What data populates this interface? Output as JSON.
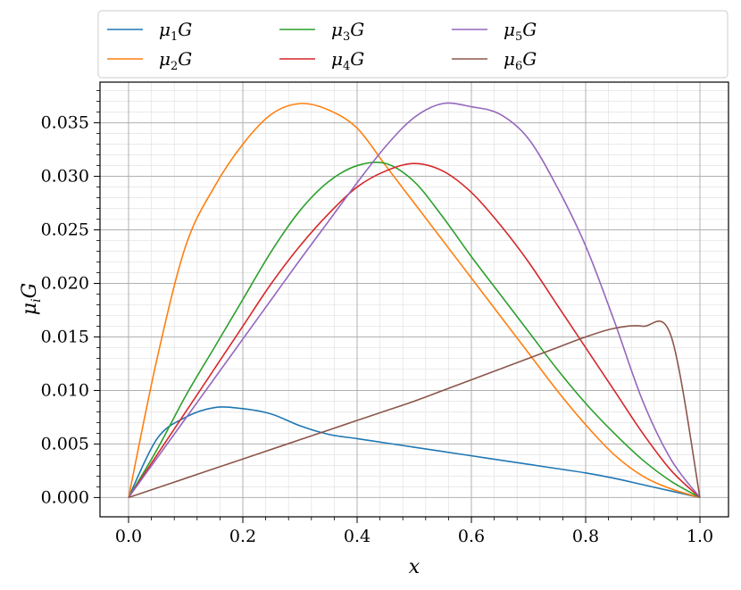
{
  "chart_data": {
    "type": "line",
    "xlabel": "x",
    "ylabel": "μ_iG",
    "xlim": [
      -0.05,
      1.05
    ],
    "ylim": [
      -0.0018,
      0.0388
    ],
    "xticks": [
      "0.0",
      "0.2",
      "0.4",
      "0.6",
      "0.8",
      "1.0"
    ],
    "yticks": [
      "0.000",
      "0.005",
      "0.010",
      "0.015",
      "0.020",
      "0.025",
      "0.030",
      "0.035"
    ],
    "grid": true,
    "minor_grid": true,
    "legend": "top-outside",
    "x": [
      0.0,
      0.05,
      0.1,
      0.15,
      0.2,
      0.25,
      0.3,
      0.35,
      0.4,
      0.45,
      0.5,
      0.55,
      0.6,
      0.65,
      0.7,
      0.75,
      0.8,
      0.85,
      0.9,
      0.95,
      1.0
    ],
    "series": [
      {
        "name": "μ1G",
        "base": "μ",
        "sub": "1",
        "tail": "G",
        "color": "#1f77b4",
        "values": [
          0.0,
          0.0055,
          0.0075,
          0.0084,
          0.0083,
          0.0078,
          0.0067,
          0.0059,
          0.0055,
          0.0051,
          0.0047,
          0.0043,
          0.0039,
          0.0035,
          0.0031,
          0.0027,
          0.0023,
          0.0018,
          0.0012,
          0.0006,
          0.0
        ]
      },
      {
        "name": "μ2G",
        "base": "μ",
        "sub": "2",
        "tail": "G",
        "color": "#ff7f0e",
        "values": [
          0.0,
          0.013,
          0.0235,
          0.029,
          0.033,
          0.0358,
          0.0368,
          0.0362,
          0.0345,
          0.031,
          0.0275,
          0.024,
          0.0205,
          0.017,
          0.0135,
          0.01,
          0.0068,
          0.004,
          0.002,
          0.0008,
          0.0
        ]
      },
      {
        "name": "μ3G",
        "base": "μ",
        "sub": "3",
        "tail": "G",
        "color": "#2ca02c",
        "values": [
          0.0,
          0.0045,
          0.0095,
          0.014,
          0.0185,
          0.023,
          0.0268,
          0.0295,
          0.031,
          0.0312,
          0.0295,
          0.0262,
          0.0225,
          0.019,
          0.0155,
          0.012,
          0.0088,
          0.006,
          0.0035,
          0.0015,
          0.0
        ]
      },
      {
        "name": "μ4G",
        "base": "μ",
        "sub": "4",
        "tail": "G",
        "color": "#d62728",
        "values": [
          0.0,
          0.004,
          0.008,
          0.012,
          0.016,
          0.02,
          0.0235,
          0.0265,
          0.029,
          0.0305,
          0.0312,
          0.0305,
          0.0285,
          0.0255,
          0.022,
          0.018,
          0.014,
          0.01,
          0.006,
          0.0025,
          0.0
        ]
      },
      {
        "name": "μ5G",
        "base": "μ",
        "sub": "5",
        "tail": "G",
        "color": "#9467bd",
        "values": [
          0.0,
          0.0037,
          0.0074,
          0.0111,
          0.0148,
          0.0185,
          0.0222,
          0.0258,
          0.0294,
          0.0328,
          0.0355,
          0.0368,
          0.0365,
          0.0358,
          0.0335,
          0.029,
          0.0235,
          0.0165,
          0.009,
          0.0035,
          0.0
        ]
      },
      {
        "name": "μ6G",
        "base": "μ",
        "sub": "6",
        "tail": "G",
        "color": "#8c564b",
        "values": [
          0.0,
          0.0009,
          0.0018,
          0.0027,
          0.0036,
          0.0045,
          0.0054,
          0.0063,
          0.0072,
          0.0081,
          0.009,
          0.01,
          0.011,
          0.012,
          0.013,
          0.014,
          0.015,
          0.0158,
          0.016,
          0.015,
          0.0
        ]
      }
    ]
  }
}
